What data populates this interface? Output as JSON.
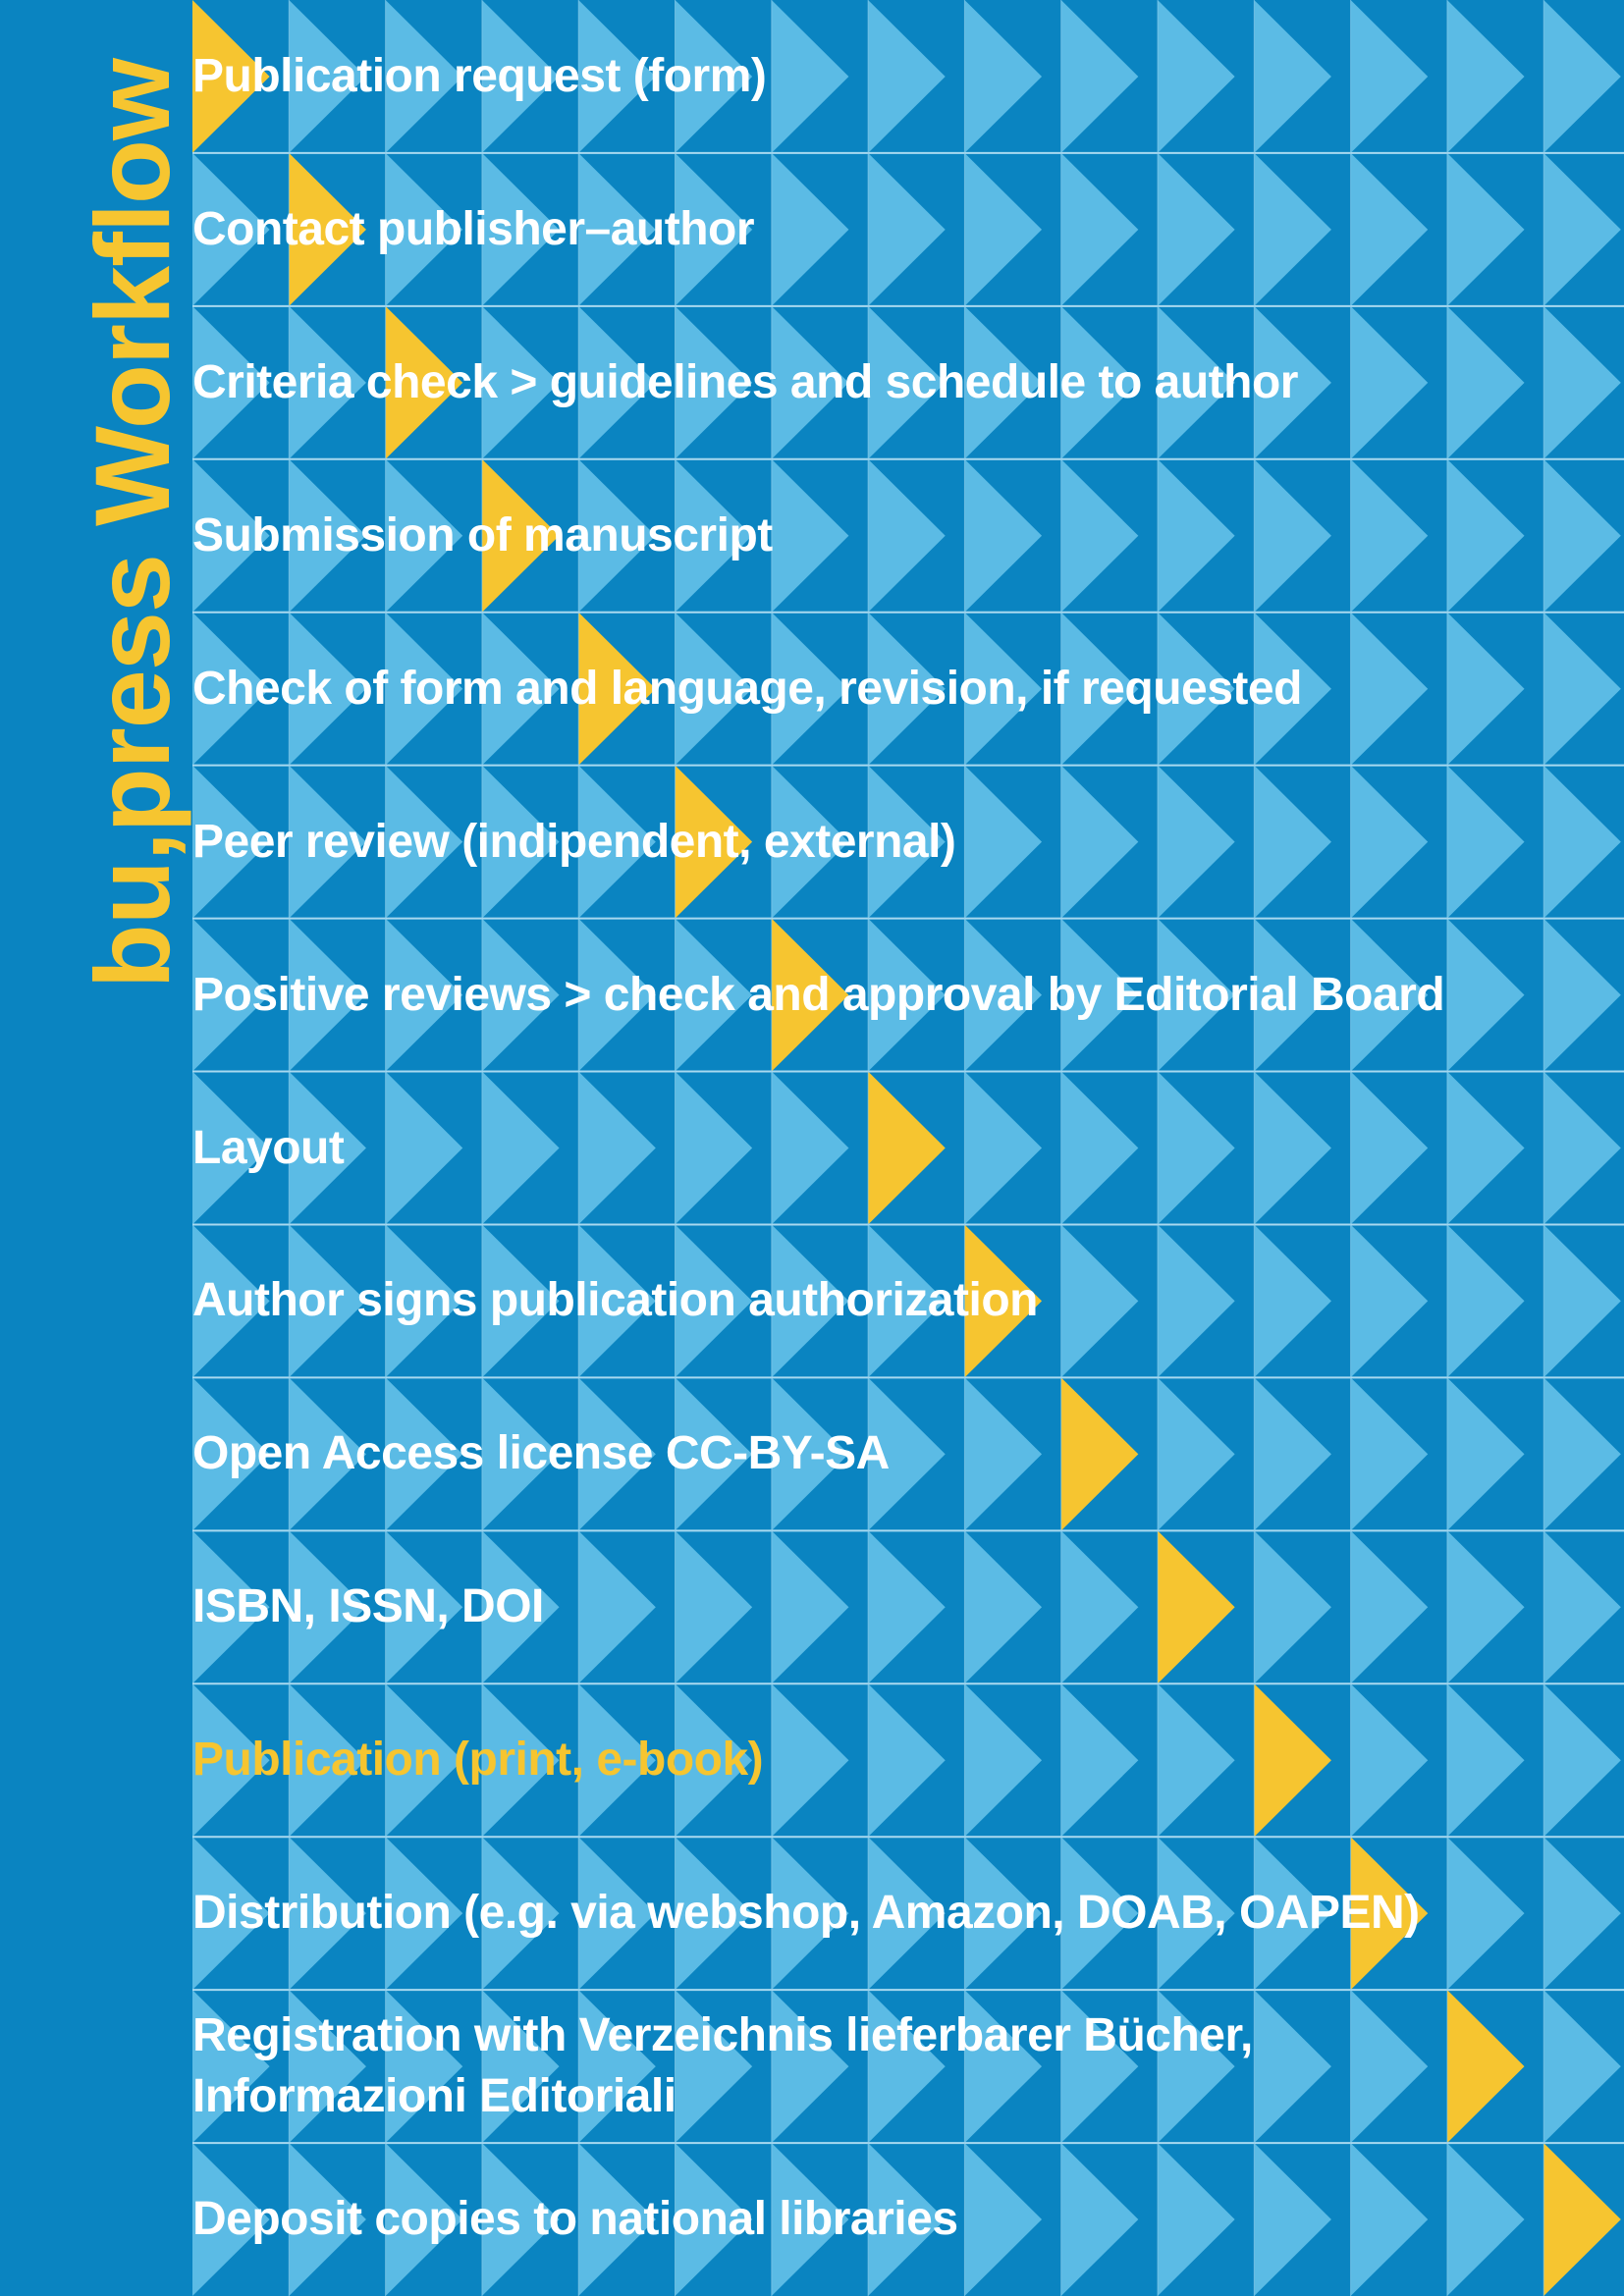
{
  "title": {
    "prefix": "bu,press",
    "word": "Workflow"
  },
  "colors": {
    "background": "#0a84c1",
    "light_triangle": "#5bbbe5",
    "active_triangle": "#f6c530",
    "title_accent": "#f6c530",
    "text": "#ffffff"
  },
  "steps": [
    {
      "label": "Publication request (form)"
    },
    {
      "label": "Contact publisher–author"
    },
    {
      "label": "Criteria check > guidelines and schedule to author"
    },
    {
      "label": "Submission of manuscript"
    },
    {
      "label": "Check of form and language, revision, if requested"
    },
    {
      "label": "Peer review (indipendent, external)"
    },
    {
      "label": "Positive reviews > check and approval by Editorial Board"
    },
    {
      "label": "Layout"
    },
    {
      "label": "Author signs publication authorization"
    },
    {
      "label": "Open Access license CC-BY-SA"
    },
    {
      "label": "ISBN, ISSN, DOI"
    },
    {
      "label": "Publication (print, e-book)",
      "highlight": true
    },
    {
      "label": "Distribution (e.g. via webshop, Amazon, DOAB, OAPEN)"
    },
    {
      "label": "Registration with Verzeichnis lieferbarer Bücher,\nInformazioni Editoriali"
    },
    {
      "label": "Deposit copies to national libraries"
    }
  ]
}
